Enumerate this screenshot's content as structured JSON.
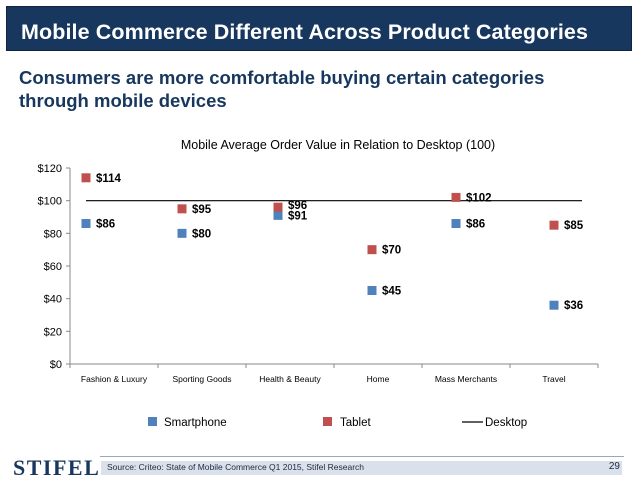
{
  "header": {
    "title": "Mobile Commerce Different Across Product Categories"
  },
  "subtitle": "Consumers are more comfortable buying certain categories through mobile devices",
  "colors": {
    "header_bg": "#17375e",
    "smartphone": "#4f81bd",
    "tablet": "#c0504d",
    "desktop": "#000000"
  },
  "chart_data": {
    "type": "scatter",
    "title": "Mobile Average Order Value in Relation to Desktop (100)",
    "categories": [
      "Fashion & Luxury",
      "Sporting Goods",
      "Health & Beauty",
      "Home",
      "Mass Merchants",
      "Travel"
    ],
    "series": [
      {
        "name": "Smartphone",
        "values": [
          86,
          80,
          91,
          45,
          86,
          36
        ],
        "labels": [
          "$86",
          "$80",
          "$91",
          "$45",
          "$86",
          "$36"
        ],
        "color": "#4f81bd"
      },
      {
        "name": "Tablet",
        "values": [
          114,
          95,
          96,
          70,
          102,
          85
        ],
        "labels": [
          "$114",
          "$95",
          "$96",
          "$70",
          "$102",
          "$85"
        ],
        "color": "#c0504d"
      },
      {
        "name": "Desktop",
        "values": [
          100,
          100,
          100,
          100,
          100,
          100
        ],
        "color": "#000000"
      }
    ],
    "ylim": [
      0,
      120
    ],
    "yticks": [
      0,
      20,
      40,
      60,
      80,
      100,
      120
    ],
    "ytick_labels": [
      "$0",
      "$20",
      "$40",
      "$60",
      "$80",
      "$100",
      "$120"
    ],
    "legend_position": "bottom",
    "grid": false
  },
  "footer": {
    "logo": "STIFEL",
    "source": "Source: Criteo: State of Mobile Commerce Q1 2015, Stifel Research",
    "page_number": "29"
  }
}
